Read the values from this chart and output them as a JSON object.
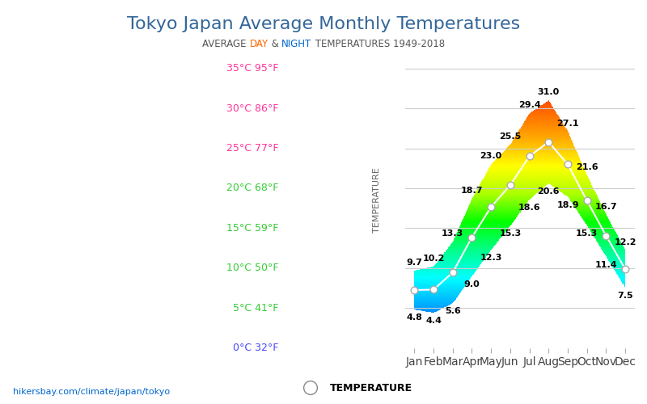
{
  "title": "Tokyo Japan Average Monthly Temperatures",
  "subtitle_parts": [
    "AVERAGE ",
    "DAY",
    " & ",
    "NIGHT",
    " TEMPERATURES 1949-2018"
  ],
  "subtitle_colors": [
    "gray",
    "#ff6600",
    "gray",
    "#0066cc",
    "gray"
  ],
  "months": [
    "Jan",
    "Feb",
    "Mar",
    "Apr",
    "May",
    "Jun",
    "Jul",
    "Aug",
    "Sep",
    "Oct",
    "Nov",
    "Dec"
  ],
  "high_temps": [
    9.7,
    10.2,
    13.3,
    18.7,
    23.0,
    25.5,
    29.4,
    31.0,
    27.1,
    21.6,
    16.7,
    12.2
  ],
  "low_temps": [
    4.8,
    4.4,
    5.6,
    9.0,
    12.3,
    15.3,
    18.6,
    20.6,
    18.9,
    15.3,
    11.4,
    7.5
  ],
  "yticks_c": [
    0,
    5,
    10,
    15,
    20,
    25,
    30,
    35
  ],
  "ytick_labels": [
    "0°C 32°F",
    "5°C 41°F",
    "10°C 50°F",
    "15°C 59°F",
    "20°C 68°F",
    "25°C 77°F",
    "30°C 86°F",
    "35°C 95°F"
  ],
  "ytick_colors": [
    "#4444ff",
    "#33cc33",
    "#33cc33",
    "#33cc33",
    "#33cc33",
    "#ff3399",
    "#ff3399",
    "#ff3399"
  ],
  "ylabel": "TEMPERATURE",
  "ylim": [
    0,
    37
  ],
  "legend_label": "TEMPERATURE",
  "watermark": "hikersbay.com/climate/japan/tokyo",
  "background_color": "#ffffff",
  "title_color": "#336699",
  "title_fontsize": 16,
  "ylabel_color": "#666666"
}
